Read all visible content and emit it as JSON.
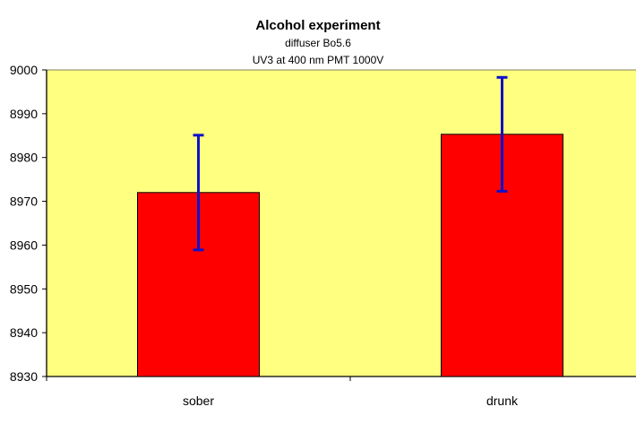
{
  "chart_data": {
    "type": "bar",
    "title": "Alcohol experiment",
    "subtitle": [
      "diffuser Bo5.6",
      "UV3 at 400 nm PMT 1000V"
    ],
    "xlabel": "",
    "ylabel": "",
    "categories": [
      "sober",
      "drunk"
    ],
    "values": [
      8972.0,
      8985.3
    ],
    "error": [
      13.1,
      13.0
    ],
    "ylim": [
      8930,
      9000
    ],
    "yticks": [
      "8930",
      "8940",
      "8950",
      "8960",
      "8970",
      "8980",
      "8990",
      "9000"
    ],
    "grid": false,
    "legend": "none",
    "colors": {
      "plot_bg": "#FFFF80",
      "bar": "#FF0000",
      "error_bar": "#1010C8",
      "axis": "#000000"
    }
  }
}
